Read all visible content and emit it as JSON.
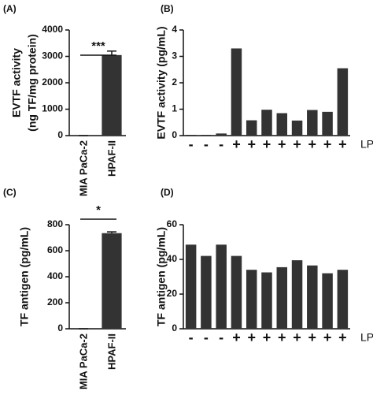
{
  "chart_data": [
    {
      "type": "bar",
      "panel_label": "(A)",
      "ylabel": [
        "EVTF activity",
        "(ng TF/mg protein)"
      ],
      "categories": [
        "MIA PaCa-2",
        "HPAF-II"
      ],
      "values": [
        0,
        3050
      ],
      "errors": [
        0,
        150
      ],
      "annotation": "***",
      "color": "#333333",
      "ylim": [
        0,
        4000
      ],
      "yticks": [
        0,
        1000,
        2000,
        3000,
        4000
      ]
    },
    {
      "type": "bar",
      "panel_label": "(B)",
      "ylabel": [
        "EVTF activity (pg/mL)"
      ],
      "xlabel": "LPS",
      "categories": [
        "-",
        "-",
        "-",
        "+",
        "+",
        "+",
        "+",
        "+",
        "+",
        "+",
        "+"
      ],
      "values": [
        0.03,
        0.03,
        0.08,
        3.3,
        0.58,
        0.98,
        0.85,
        0.57,
        0.97,
        0.9,
        2.55
      ],
      "color": "#333333",
      "ylim": [
        0,
        4
      ],
      "yticks": [
        0,
        1,
        2,
        3,
        4
      ]
    },
    {
      "type": "bar",
      "panel_label": "(C)",
      "ylabel": [
        "TF antigen (pg/mL)"
      ],
      "categories": [
        "MIA PaCa-2",
        "HPAF-II"
      ],
      "values": [
        0,
        735
      ],
      "errors": [
        0,
        10
      ],
      "annotation": "*",
      "color": "#333333",
      "ylim": [
        0,
        800
      ],
      "yticks": [
        0,
        200,
        400,
        600,
        800
      ]
    },
    {
      "type": "bar",
      "panel_label": "(D)",
      "ylabel": [
        "TF antigen (pg/mL)"
      ],
      "xlabel": "LPS",
      "categories": [
        "-",
        "-",
        "-",
        "+",
        "+",
        "+",
        "+",
        "+",
        "+",
        "+",
        "+"
      ],
      "values": [
        48.5,
        42,
        48.5,
        42,
        34,
        32.5,
        35.5,
        39.5,
        36.5,
        32,
        34
      ],
      "color": "#333333",
      "ylim": [
        0,
        60
      ],
      "yticks": [
        0,
        20,
        40,
        60
      ]
    }
  ]
}
